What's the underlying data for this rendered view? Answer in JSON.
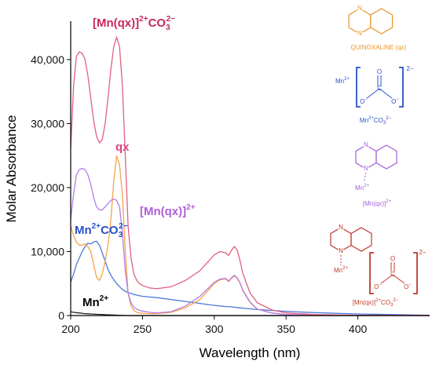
{
  "chart_data": {
    "type": "line",
    "xlabel": "Wavelength (nm)",
    "ylabel": "Molar Absorbance",
    "xlim": [
      200,
      450
    ],
    "xticks": [
      200,
      250,
      300,
      350,
      400
    ],
    "ylim": [
      0,
      46000
    ],
    "yticks": [
      0,
      {
        "value": 10000,
        "label": "10,000"
      },
      {
        "value": 20000,
        "label": "20,000"
      },
      {
        "value": 30000,
        "label": "30,000"
      },
      {
        "value": 40000,
        "label": "40,000"
      }
    ],
    "x": [
      200,
      202,
      204,
      206,
      208,
      210,
      212,
      214,
      216,
      218,
      220,
      222,
      224,
      226,
      228,
      230,
      232,
      234,
      236,
      238,
      240,
      242,
      244,
      246,
      248,
      250,
      255,
      260,
      270,
      280,
      290,
      296,
      300,
      304,
      308,
      310,
      312,
      314,
      316,
      318,
      320,
      325,
      330,
      340,
      350,
      370,
      400,
      450
    ],
    "series": [
      {
        "label": [
          "Mn",
          "2+"
        ],
        "color": "#222222",
        "values": [
          600,
          500,
          450,
          400,
          350,
          300,
          280,
          250,
          230,
          200,
          180,
          160,
          140,
          120,
          100,
          80,
          60,
          40,
          20,
          10,
          0,
          0,
          0,
          0,
          0,
          0,
          0,
          0,
          0,
          0,
          0,
          0,
          0,
          0,
          0,
          0,
          0,
          0,
          0,
          0,
          0,
          0,
          0,
          0,
          0,
          0,
          0,
          0
        ]
      },
      {
        "label": [
          "Mn",
          "2+",
          "CO",
          "3",
          "2−"
        ],
        "color": "#4a78d8",
        "values": [
          5200,
          6500,
          8000,
          9000,
          10000,
          10800,
          11300,
          11200,
          11500,
          11600,
          11000,
          9800,
          8500,
          7200,
          6300,
          5600,
          5000,
          4500,
          4100,
          3800,
          3600,
          3450,
          3300,
          3200,
          3100,
          3000,
          2900,
          2800,
          2500,
          2200,
          1900,
          1700,
          1600,
          1500,
          1400,
          1400,
          1350,
          1300,
          1250,
          1200,
          1150,
          1050,
          950,
          800,
          650,
          450,
          250,
          50
        ]
      },
      {
        "label": [
          "qx"
        ],
        "color": "#f5a347",
        "values": [
          14000,
          12500,
          11500,
          11000,
          11000,
          11200,
          10800,
          10000,
          8000,
          6000,
          5500,
          6500,
          8500,
          11000,
          15000,
          21000,
          25000,
          23500,
          19000,
          10000,
          3500,
          1500,
          800,
          500,
          400,
          350,
          300,
          300,
          500,
          1200,
          2500,
          4000,
          5000,
          5600,
          5700,
          5300,
          5800,
          6200,
          5800,
          5000,
          3800,
          2000,
          1000,
          400,
          150,
          50,
          0,
          0
        ]
      },
      {
        "label": [
          "[Mn(qx)]",
          "2+"
        ],
        "color": "#b57be6",
        "values": [
          15000,
          19000,
          22000,
          22800,
          23000,
          22800,
          22000,
          20500,
          18500,
          17000,
          16500,
          16500,
          17000,
          17500,
          18000,
          18200,
          18000,
          17000,
          13000,
          7000,
          3500,
          2000,
          1300,
          1000,
          800,
          700,
          500,
          400,
          600,
          1500,
          3000,
          4300,
          5200,
          5700,
          5800,
          5400,
          5900,
          6300,
          5900,
          5100,
          3900,
          2100,
          1000,
          400,
          150,
          50,
          0,
          0
        ]
      },
      {
        "label": [
          "[Mn(qx)]",
          "2+",
          "CO",
          "3",
          "2−"
        ],
        "color": "#e0607e",
        "values": [
          26000,
          36000,
          40500,
          41200,
          41000,
          40000,
          37500,
          34000,
          30500,
          28000,
          27000,
          27500,
          30000,
          34000,
          38500,
          42000,
          43500,
          42000,
          36000,
          25000,
          14000,
          9000,
          6500,
          5500,
          5000,
          4700,
          4300,
          4200,
          4500,
          5500,
          7000,
          8500,
          9500,
          10000,
          9800,
          9400,
          10200,
          10800,
          10200,
          8500,
          6500,
          3500,
          2000,
          900,
          400,
          150,
          50,
          0
        ]
      }
    ]
  },
  "structures": [
    {
      "atoms": [
        "N",
        "N"
      ],
      "label": [
        "QUINOXALINE (qx)"
      ]
    },
    {
      "atoms": [
        "Mn",
        "2+",
        "O",
        "C",
        "O",
        "−",
        "O",
        "−",
        "2−"
      ],
      "label": [
        "Mn",
        "2+",
        "CO",
        "3",
        "2−"
      ]
    },
    {
      "atoms": [
        "N",
        "N",
        "Mn",
        "2+"
      ],
      "label": [
        "[Mn(qx)]",
        "2+"
      ]
    },
    {
      "atoms": [
        "N",
        "N",
        "Mn",
        "2+",
        "O",
        "C",
        "O",
        "−",
        "O",
        "−",
        "2−"
      ],
      "label": [
        "[Mn(qx)]",
        "2+",
        "CO",
        "3",
        "2−"
      ]
    }
  ]
}
